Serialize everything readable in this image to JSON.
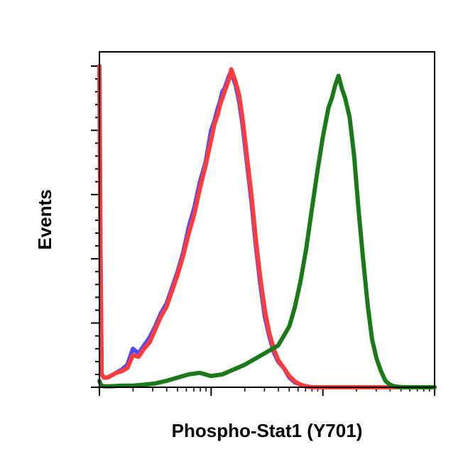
{
  "chart_data": {
    "type": "line",
    "title": "",
    "xlabel": "Phospho-Stat1 (Y701)",
    "ylabel": "Events",
    "x_scale": "log",
    "xlim": [
      0,
      3
    ],
    "ylim": [
      0,
      100
    ],
    "grid": false,
    "legend": "none",
    "series": [
      {
        "color": "#4b4bff",
        "x": [
          0.0,
          0.01,
          0.02,
          0.04,
          0.07,
          0.1,
          0.15,
          0.2,
          0.25,
          0.3,
          0.35,
          0.4,
          0.45,
          0.5,
          0.55,
          0.6,
          0.65,
          0.7,
          0.75,
          0.8,
          0.85,
          0.9,
          0.95,
          1.0,
          1.03,
          1.06,
          1.08,
          1.1,
          1.12,
          1.14,
          1.16,
          1.18,
          1.2,
          1.22,
          1.25,
          1.28,
          1.32,
          1.36,
          1.4,
          1.44,
          1.48,
          1.52,
          1.56,
          1.6,
          1.65,
          1.7,
          1.75,
          1.8,
          1.85,
          1.9,
          2.0,
          2.1,
          2.2,
          2.3,
          2.4,
          2.5,
          2.6,
          2.7,
          2.8,
          2.9,
          3.0
        ],
        "y": [
          100,
          40,
          4,
          3,
          3,
          3.5,
          4.5,
          5.5,
          7,
          12,
          10.5,
          13,
          15.5,
          19,
          23,
          26,
          31,
          36,
          42,
          50,
          56,
          64,
          70,
          80,
          83,
          87,
          89,
          92,
          93,
          95,
          97,
          98.5,
          96,
          94,
          89,
          82,
          70,
          58,
          44,
          32,
          22,
          16,
          11,
          8,
          6,
          3,
          1.5,
          0.8,
          0.3,
          0,
          0,
          0,
          0,
          0,
          0,
          0,
          0,
          0,
          0,
          0,
          0
        ]
      },
      {
        "color": "#ff3b3b",
        "x": [
          0.0,
          0.01,
          0.02,
          0.04,
          0.07,
          0.1,
          0.15,
          0.2,
          0.25,
          0.3,
          0.35,
          0.4,
          0.45,
          0.5,
          0.55,
          0.6,
          0.65,
          0.7,
          0.75,
          0.8,
          0.85,
          0.9,
          0.95,
          1.0,
          1.03,
          1.06,
          1.08,
          1.1,
          1.12,
          1.14,
          1.16,
          1.18,
          1.2,
          1.22,
          1.25,
          1.28,
          1.32,
          1.36,
          1.4,
          1.44,
          1.48,
          1.52,
          1.56,
          1.6,
          1.65,
          1.7,
          1.75,
          1.8,
          1.85,
          1.9,
          2.0,
          2.1,
          2.2,
          2.3,
          2.4,
          2.5,
          2.6,
          2.7,
          2.8,
          2.9,
          3.0
        ],
        "y": [
          100,
          40,
          4,
          3,
          3,
          3.5,
          4.5,
          5,
          6,
          10,
          9.5,
          12,
          14,
          18,
          22,
          25,
          30,
          35,
          41,
          48,
          54,
          62,
          69,
          77,
          82,
          85,
          88,
          90,
          92,
          94,
          96,
          99,
          97,
          95,
          91,
          84,
          72,
          60,
          46,
          34,
          24,
          17,
          12,
          8.5,
          6,
          3.5,
          1.8,
          0.8,
          0.3,
          0,
          0,
          0,
          0,
          0,
          0,
          0,
          0,
          0,
          0,
          0,
          0
        ]
      },
      {
        "color": "#1a7a1a",
        "x": [
          0.0,
          0.01,
          0.02,
          0.04,
          0.1,
          0.2,
          0.3,
          0.4,
          0.5,
          0.6,
          0.7,
          0.8,
          0.9,
          1.0,
          1.1,
          1.2,
          1.3,
          1.4,
          1.5,
          1.6,
          1.7,
          1.75,
          1.8,
          1.85,
          1.9,
          1.95,
          2.0,
          2.05,
          2.08,
          2.11,
          2.14,
          2.17,
          2.2,
          2.24,
          2.28,
          2.32,
          2.36,
          2.4,
          2.44,
          2.48,
          2.52,
          2.56,
          2.6,
          2.64,
          2.68,
          2.72,
          2.8,
          2.9,
          3.0
        ],
        "y": [
          2,
          1,
          0.5,
          0.3,
          0.3,
          0.5,
          0.5,
          0.8,
          1.2,
          2,
          3,
          4,
          4.5,
          3.5,
          4,
          5.5,
          7,
          9,
          11,
          13,
          19,
          25,
          33,
          43,
          55,
          67,
          78,
          87,
          90,
          94,
          97,
          93,
          90,
          84,
          72,
          55,
          40,
          26,
          15,
          9,
          5,
          2,
          0.8,
          0.3,
          0.1,
          0,
          0,
          0,
          0
        ]
      }
    ]
  }
}
